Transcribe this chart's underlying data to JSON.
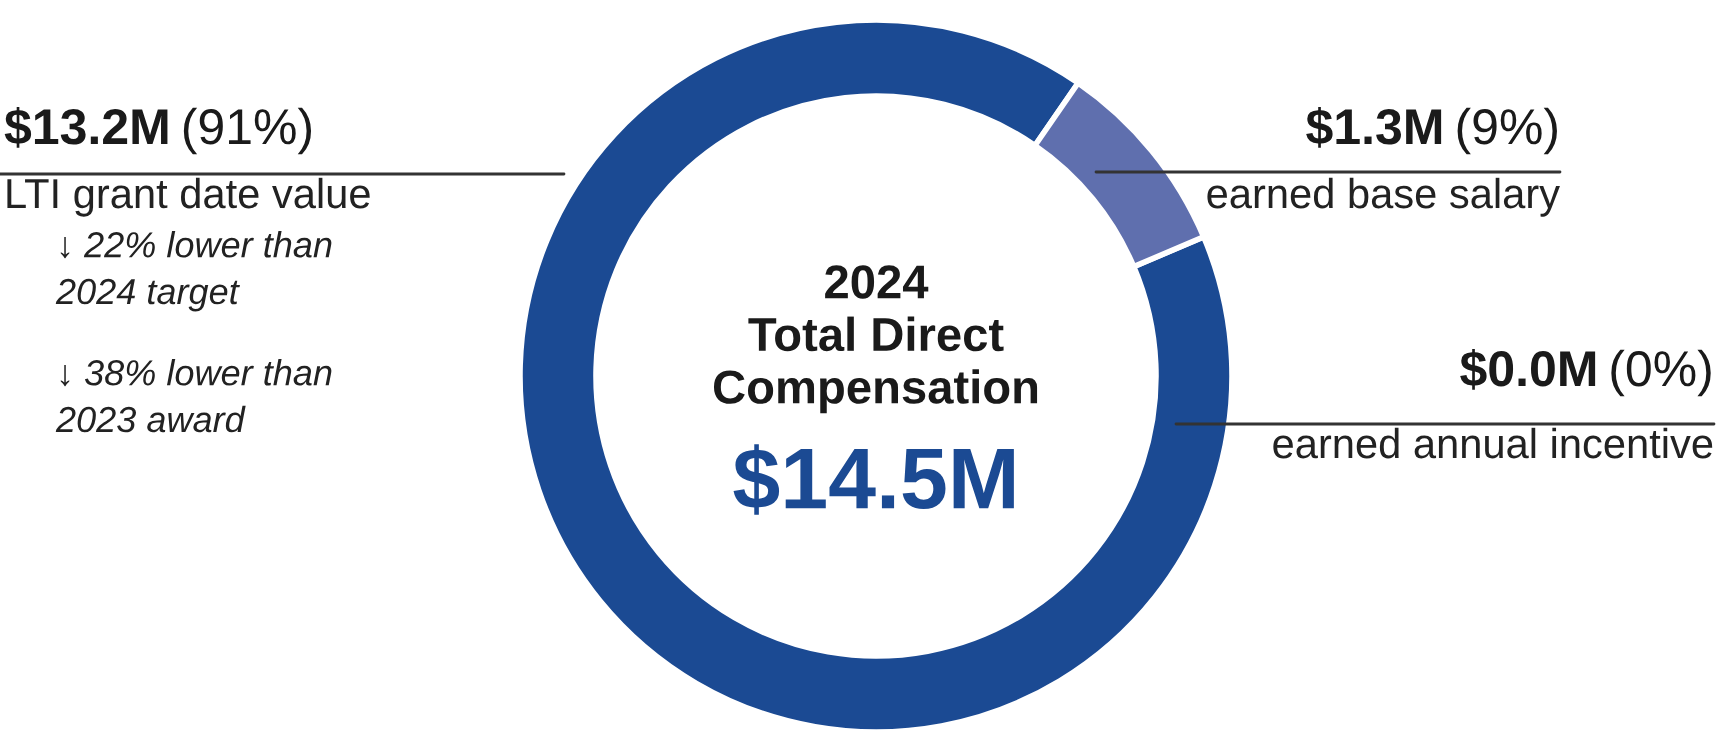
{
  "chart_data": {
    "type": "donut",
    "title": "2024\nTotal Direct\nCompensation",
    "subtitle": "$14.5M",
    "categories": [
      "LTI grant date value",
      "earned base salary",
      "earned annual incentive"
    ],
    "values": [
      91,
      9,
      0
    ],
    "value_labels": [
      "$13.2M (91%)",
      "$1.3M (9%)",
      "$0.0M (0%)"
    ],
    "colors": [
      "#1b4a93",
      "#5f6fae",
      "#1b4a93"
    ],
    "annotations": [
      "↓ 22% lower than\n2024 target",
      "↓ 38% lower than\n2023 award"
    ]
  }
}
